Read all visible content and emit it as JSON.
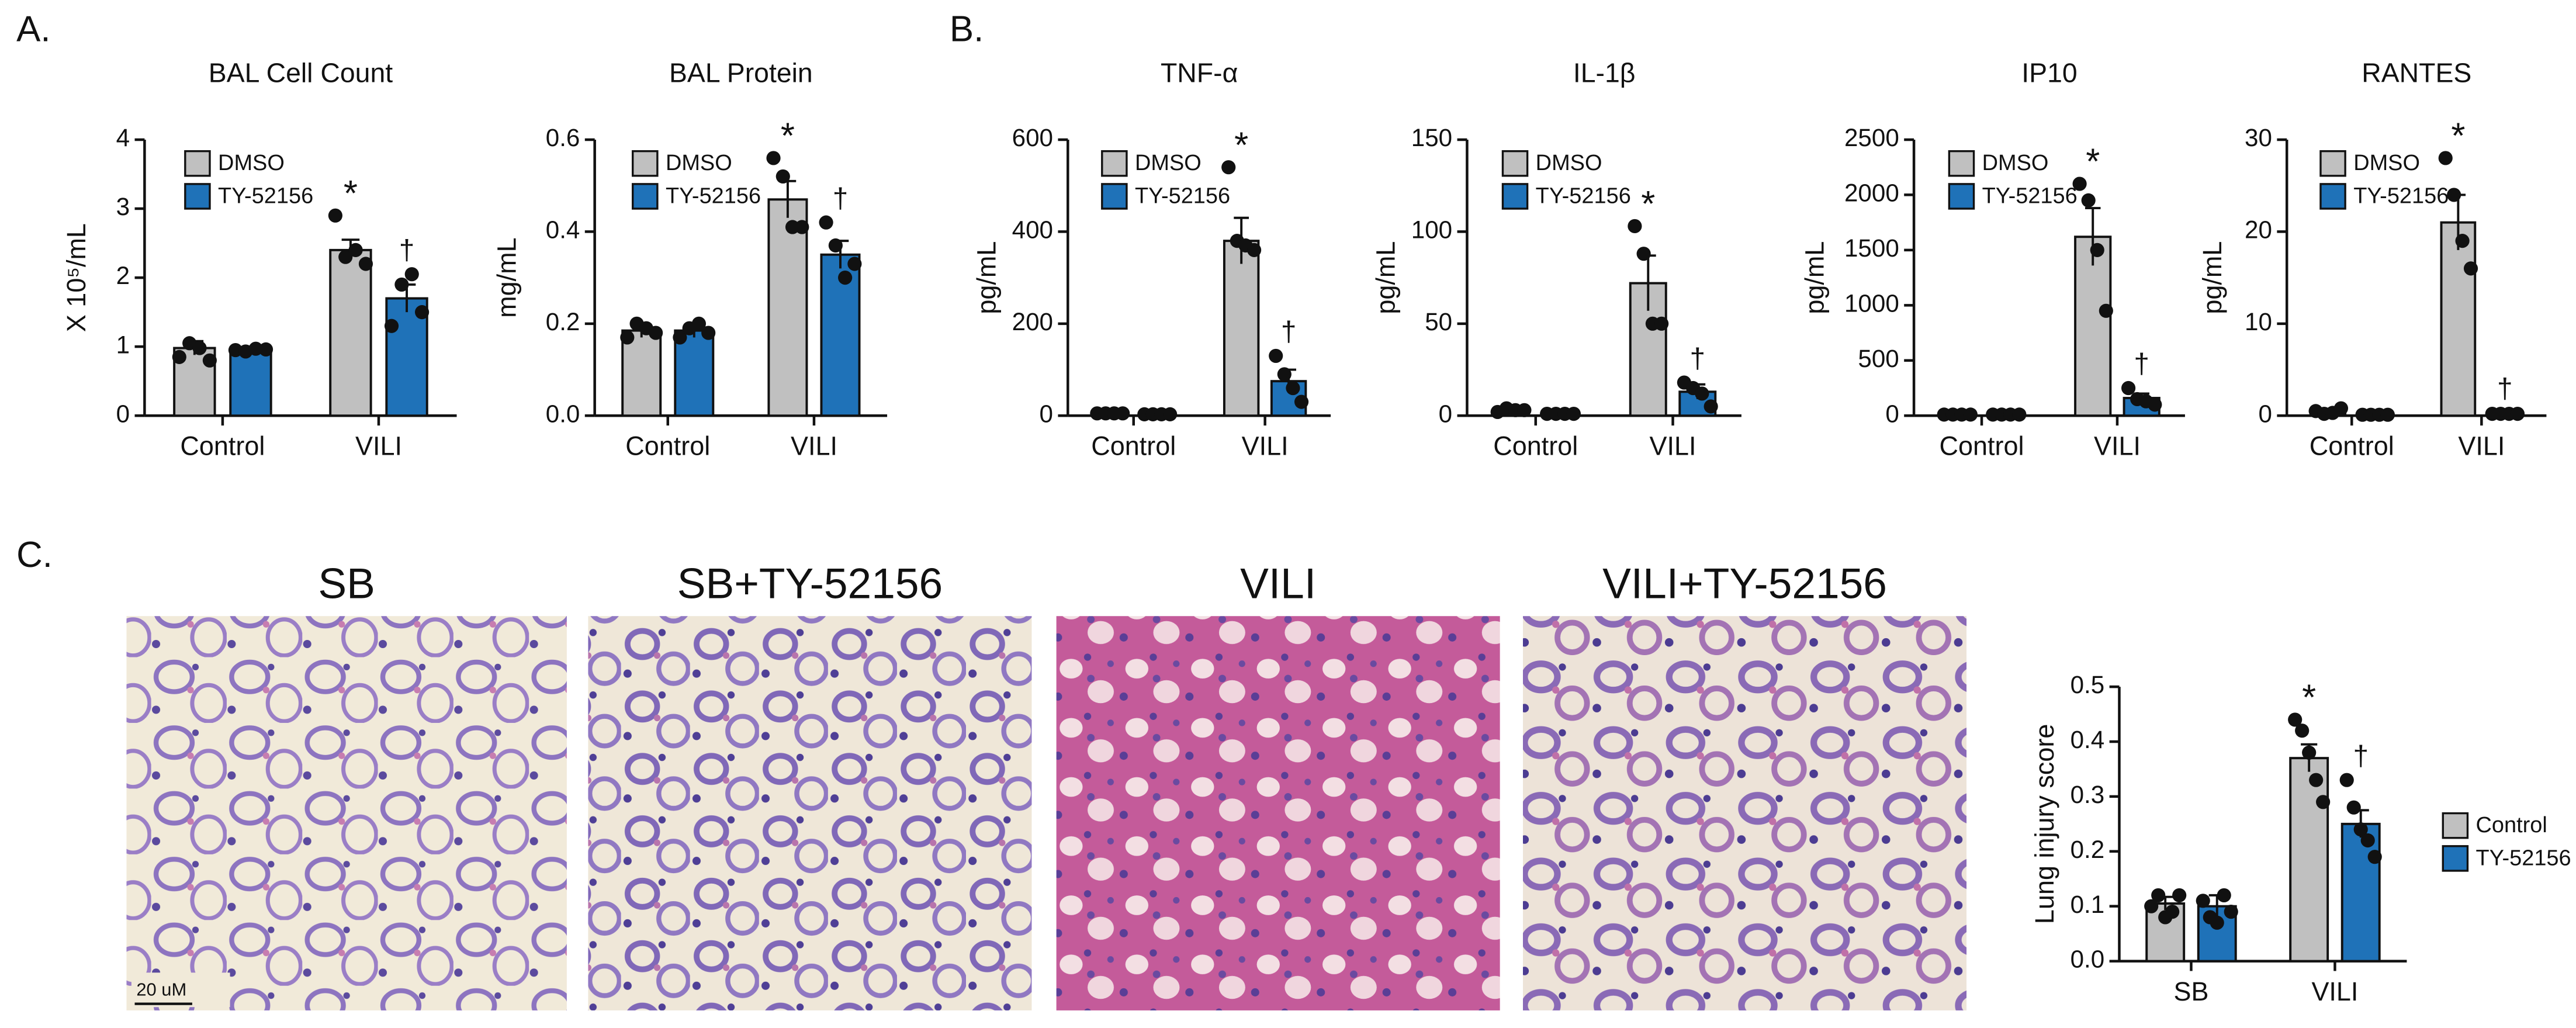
{
  "panels": [
    "A.",
    "B.",
    "C."
  ],
  "images": {
    "titles": [
      "SB",
      "SB+TY-52156",
      "VILI",
      "VILI+TY-52156"
    ],
    "scale_bar": "20 uM"
  },
  "chart_data": [
    {
      "type": "bar",
      "title": "BAL Cell Count",
      "ylabel": "X 10⁵/mL",
      "categories": [
        "Control",
        "VILI"
      ],
      "ylim": [
        0,
        4
      ],
      "yticks": [
        0,
        1,
        2,
        3,
        4
      ],
      "legend": "upper left",
      "series": [
        {
          "name": "DMSO",
          "color": "#c0c0c0",
          "values": [
            0.98,
            2.4
          ],
          "errors": [
            0.1,
            0.15
          ],
          "points": [
            [
              0.85,
              1.05,
              0.98,
              0.8
            ],
            [
              2.9,
              2.3,
              2.4,
              2.2
            ]
          ],
          "annotations": [
            null,
            "*"
          ]
        },
        {
          "name": "TY-52156",
          "color": "#1f72b8",
          "values": [
            0.95,
            1.7
          ],
          "errors": [
            0.03,
            0.2
          ],
          "points": [
            [
              0.95,
              0.93,
              0.97,
              0.96
            ],
            [
              1.3,
              1.9,
              2.05,
              1.5
            ]
          ],
          "annotations": [
            null,
            "†"
          ]
        }
      ]
    },
    {
      "type": "bar",
      "title": "BAL Protein",
      "ylabel": "mg/mL",
      "categories": [
        "Control",
        "VILI"
      ],
      "ylim": [
        0,
        0.6
      ],
      "yticks": [
        {
          "value": 0,
          "label": "0.0"
        },
        0.2,
        0.4,
        0.6
      ],
      "legend": "upper left",
      "series": [
        {
          "name": "DMSO",
          "color": "#c0c0c0",
          "values": [
            0.185,
            0.47
          ],
          "errors": [
            0.015,
            0.04
          ],
          "points": [
            [
              0.17,
              0.2,
              0.19,
              0.18
            ],
            [
              0.56,
              0.52,
              0.41,
              0.41
            ]
          ],
          "annotations": [
            null,
            "*"
          ]
        },
        {
          "name": "TY-52156",
          "color": "#1f72b8",
          "values": [
            0.185,
            0.35
          ],
          "errors": [
            0.015,
            0.03
          ],
          "points": [
            [
              0.17,
              0.19,
              0.2,
              0.18
            ],
            [
              0.42,
              0.37,
              0.3,
              0.33
            ]
          ],
          "annotations": [
            null,
            "†"
          ]
        }
      ]
    },
    {
      "type": "bar",
      "title": "TNF-α",
      "ylabel": "pg/mL",
      "categories": [
        "Control",
        "VILI"
      ],
      "ylim": [
        0,
        600
      ],
      "yticks": [
        0,
        200,
        400,
        600
      ],
      "legend": "upper left",
      "series": [
        {
          "name": "DMSO",
          "color": "#c0c0c0",
          "values": [
            5,
            380
          ],
          "errors": [
            1,
            50
          ],
          "points": [
            [
              5,
              5,
              5,
              5
            ],
            [
              540,
              380,
              370,
              360
            ]
          ],
          "annotations": [
            null,
            "*"
          ]
        },
        {
          "name": "TY-52156",
          "color": "#1f72b8",
          "values": [
            3,
            75
          ],
          "errors": [
            1,
            25
          ],
          "points": [
            [
              3,
              3,
              3,
              3
            ],
            [
              130,
              90,
              60,
              30
            ]
          ],
          "annotations": [
            null,
            "†"
          ]
        }
      ]
    },
    {
      "type": "bar",
      "title": "IL-1β",
      "ylabel": "pg/mL",
      "categories": [
        "Control",
        "VILI"
      ],
      "ylim": [
        0,
        150
      ],
      "yticks": [
        0,
        50,
        100,
        150
      ],
      "legend": "upper left",
      "series": [
        {
          "name": "DMSO",
          "color": "#c0c0c0",
          "values": [
            3,
            72
          ],
          "errors": [
            1,
            15
          ],
          "points": [
            [
              2,
              4,
              3,
              3
            ],
            [
              103,
              88,
              50,
              50
            ]
          ],
          "annotations": [
            null,
            "*"
          ]
        },
        {
          "name": "TY-52156",
          "color": "#1f72b8",
          "values": [
            1,
            13
          ],
          "errors": [
            0.5,
            4
          ],
          "points": [
            [
              1,
              1,
              1,
              1
            ],
            [
              18,
              15,
              12,
              5
            ]
          ],
          "annotations": [
            null,
            "†"
          ]
        }
      ]
    },
    {
      "type": "bar",
      "title": "IP10",
      "ylabel": "pg/mL",
      "categories": [
        "Control",
        "VILI"
      ],
      "ylim": [
        0,
        2500
      ],
      "yticks": [
        0,
        500,
        1000,
        1500,
        2000,
        2500
      ],
      "legend": "upper left",
      "series": [
        {
          "name": "DMSO",
          "color": "#c0c0c0",
          "values": [
            10,
            1620
          ],
          "errors": [
            3,
            260
          ],
          "points": [
            [
              10,
              10,
              10,
              10
            ],
            [
              2100,
              1950,
              1500,
              950
            ]
          ],
          "annotations": [
            null,
            "*"
          ]
        },
        {
          "name": "TY-52156",
          "color": "#1f72b8",
          "values": [
            10,
            160
          ],
          "errors": [
            3,
            40
          ],
          "points": [
            [
              10,
              10,
              10,
              10
            ],
            [
              250,
              150,
              130,
              100
            ]
          ],
          "annotations": [
            null,
            "†"
          ]
        }
      ]
    },
    {
      "type": "bar",
      "title": "RANTES",
      "ylabel": "pg/mL",
      "categories": [
        "Control",
        "VILI"
      ],
      "ylim": [
        0,
        30
      ],
      "yticks": [
        0,
        10,
        20,
        30
      ],
      "legend": "upper left",
      "series": [
        {
          "name": "DMSO",
          "color": "#c0c0c0",
          "values": [
            0.3,
            21
          ],
          "errors": [
            0.2,
            3
          ],
          "points": [
            [
              0.5,
              0.2,
              0.3,
              0.8
            ],
            [
              28,
              24,
              19,
              16
            ]
          ],
          "annotations": [
            null,
            "*"
          ]
        },
        {
          "name": "TY-52156",
          "color": "#1f72b8",
          "values": [
            0.1,
            0.2
          ],
          "errors": [
            0.05,
            0.1
          ],
          "points": [
            [
              0.1,
              0.1,
              0.1,
              0.1
            ],
            [
              0.2,
              0.2,
              0.2,
              0.2
            ]
          ],
          "annotations": [
            null,
            "†"
          ]
        }
      ]
    },
    {
      "type": "bar",
      "title": null,
      "ylabel": "Lung injury score",
      "categories": [
        "SB",
        "VILI"
      ],
      "ylim": [
        0,
        0.5
      ],
      "yticks": [
        {
          "value": 0,
          "label": "0.0"
        },
        0.1,
        0.2,
        0.3,
        0.4,
        0.5
      ],
      "legend": "right",
      "series": [
        {
          "name": "Control",
          "color": "#c0c0c0",
          "values": [
            0.105,
            0.37
          ],
          "errors": [
            0.012,
            0.025
          ],
          "points": [
            [
              0.1,
              0.12,
              0.08,
              0.09,
              0.12
            ],
            [
              0.44,
              0.42,
              0.38,
              0.33,
              0.29
            ]
          ],
          "annotations": [
            null,
            "*"
          ]
        },
        {
          "name": "TY-52156",
          "color": "#1f72b8",
          "values": [
            0.1,
            0.25
          ],
          "errors": [
            0.02,
            0.025
          ],
          "points": [
            [
              0.11,
              0.08,
              0.07,
              0.12,
              0.09
            ],
            [
              0.33,
              0.28,
              0.24,
              0.22,
              0.19
            ]
          ],
          "annotations": [
            null,
            "†"
          ]
        }
      ]
    }
  ]
}
